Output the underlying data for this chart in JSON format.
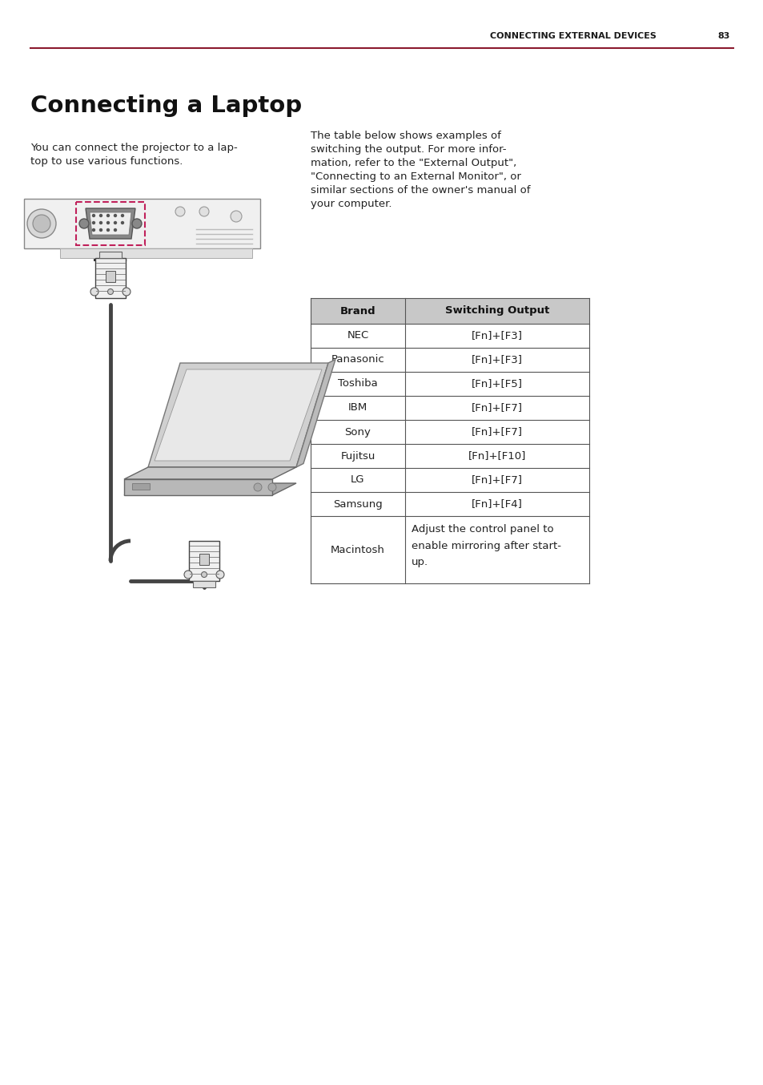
{
  "page_header_text": "CONNECTING EXTERNAL DEVICES",
  "page_number": "83",
  "header_line_color": "#8B1A2E",
  "title": "Connecting a Laptop",
  "left_paragraph_lines": [
    "You can connect the projector to a lap-",
    "top to use various functions."
  ],
  "right_paragraph_lines": [
    "The table below shows examples of",
    "switching the output. For more infor-",
    "mation, refer to the \"External Output\",",
    "\"Connecting to an External Monitor\", or",
    "similar sections of the owner's manual of",
    "your computer."
  ],
  "table_header": [
    "Brand",
    "Switching Output"
  ],
  "table_data": [
    [
      "NEC",
      "[Fn]+[F3]"
    ],
    [
      "Panasonic",
      "[Fn]+[F3]"
    ],
    [
      "Toshiba",
      "[Fn]+[F5]"
    ],
    [
      "IBM",
      "[Fn]+[F7]"
    ],
    [
      "Sony",
      "[Fn]+[F7]"
    ],
    [
      "Fujitsu",
      "[Fn]+[F10]"
    ],
    [
      "LG",
      "[Fn]+[F7]"
    ],
    [
      "Samsung",
      "[Fn]+[F4]"
    ],
    [
      "Macintosh",
      "Adjust the control panel to\nenable mirroring after start-\nup."
    ]
  ],
  "table_header_bg": "#C8C8C8",
  "table_border_color": "#555555",
  "bg_color": "#FFFFFF",
  "body_font_size": 9.5,
  "title_font_size": 21,
  "header_font_size": 8,
  "accent_color": "#C0205A"
}
